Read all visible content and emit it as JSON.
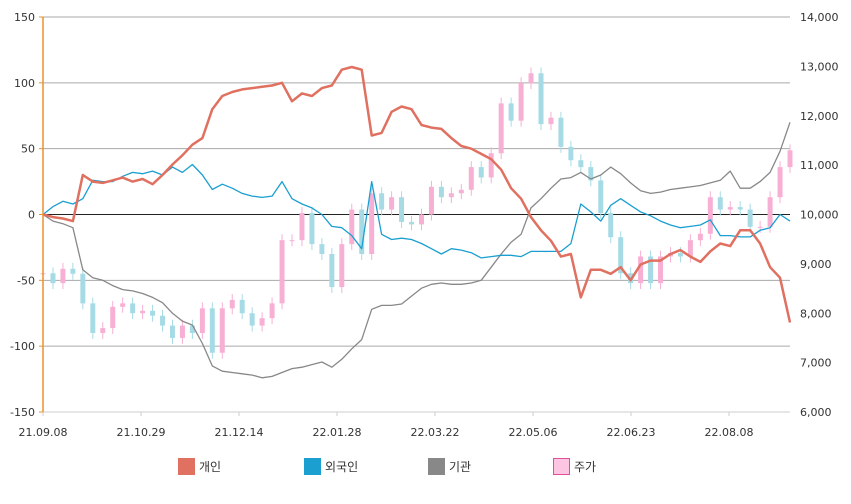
{
  "chart_data": {
    "type": "line",
    "x_tick_labels": [
      "21.09.08",
      "21.10.29",
      "21.12.14",
      "22.01.28",
      "22.03.22",
      "22.05.06",
      "22.06.23",
      "22.08.08"
    ],
    "left_axis": {
      "ylim": [
        -150,
        150
      ],
      "ticks": [
        -150,
        -100,
        -50,
        0,
        50,
        100,
        150
      ]
    },
    "right_axis": {
      "ylim": [
        6000,
        14000
      ],
      "ticks": [
        "6,000",
        "7,000",
        "8,000",
        "9,000",
        "10,000",
        "11,000",
        "12,000",
        "13,000",
        "14,000"
      ]
    },
    "grid": true,
    "legend_position": "bottom",
    "series": [
      {
        "name": "개인",
        "color": "#e07060",
        "axis": "left",
        "values": [
          0,
          -2,
          -3,
          -5,
          30,
          25,
          24,
          26,
          28,
          25,
          27,
          23,
          30,
          38,
          45,
          53,
          58,
          80,
          90,
          93,
          95,
          96,
          97,
          98,
          100,
          86,
          92,
          90,
          96,
          98,
          110,
          112,
          110,
          60,
          62,
          78,
          82,
          80,
          68,
          66,
          65,
          58,
          52,
          50,
          46,
          42,
          34,
          20,
          12,
          -2,
          -12,
          -20,
          -32,
          -30,
          -63,
          -42,
          -42,
          -45,
          -40,
          -50,
          -38,
          -35,
          -35,
          -30,
          -27,
          -32,
          -36,
          -28,
          -22,
          -24,
          -12,
          -12,
          -22,
          -40,
          -48,
          -82
        ]
      },
      {
        "name": "외국인",
        "color": "#1a9fd0",
        "axis": "left",
        "values": [
          0,
          6,
          10,
          8,
          12,
          26,
          25,
          25,
          29,
          32,
          31,
          33,
          30,
          36,
          32,
          38,
          30,
          19,
          23,
          20,
          16,
          14,
          13,
          14,
          25,
          12,
          8,
          5,
          0,
          -9,
          -10,
          -16,
          -26,
          25,
          -15,
          -19,
          -18,
          -19,
          -22,
          -26,
          -30,
          -26,
          -27,
          -29,
          -33,
          -32,
          -31,
          -31,
          -32,
          -28,
          -28,
          -28,
          -28,
          -22,
          8,
          2,
          -5,
          7,
          12,
          7,
          2,
          -1,
          -5,
          -8,
          -10,
          -9,
          -8,
          -4,
          -16,
          -16,
          -17,
          -17,
          -12,
          -10,
          0,
          -5
        ]
      },
      {
        "name": "기관",
        "color": "#888888",
        "axis": "left",
        "values": [
          0,
          -5,
          -7,
          -10,
          -42,
          -48,
          -50,
          -54,
          -57,
          -58,
          -60,
          -63,
          -67,
          -75,
          -81,
          -84,
          -98,
          -115,
          -119,
          -120,
          -121,
          -122,
          -124,
          -123,
          -120,
          -117,
          -116,
          -114,
          -112,
          -116,
          -110,
          -102,
          -95,
          -72,
          -69,
          -69,
          -68,
          -62,
          -56,
          -53,
          -52,
          -53,
          -53,
          -52,
          -50,
          -40,
          -30,
          -21,
          -15,
          5,
          12,
          20,
          27,
          28,
          32,
          27,
          30,
          36,
          31,
          24,
          18,
          16,
          17,
          19,
          20,
          21,
          22,
          24,
          26,
          33,
          20,
          20,
          25,
          32,
          48,
          70
        ]
      },
      {
        "name": "주가",
        "type": "candlestick",
        "up_color": "#f7b0d4",
        "down_color": "#a6dbe6",
        "axis": "right",
        "close": [
          8810,
          8610,
          8900,
          8800,
          8200,
          7600,
          7700,
          8130,
          8200,
          8000,
          8050,
          7950,
          7750,
          7500,
          7750,
          7600,
          8100,
          7200,
          8100,
          8270,
          8000,
          7750,
          7900,
          8200,
          9480,
          9480,
          10030,
          9400,
          9200,
          8530,
          9400,
          10100,
          9200,
          10430,
          10100,
          10350,
          9850,
          9800,
          10000,
          10560,
          10350,
          10430,
          10500,
          10960,
          10750,
          11240,
          12250,
          11900,
          12660,
          12860,
          11830,
          11960,
          11370,
          11100,
          10960,
          10690,
          10030,
          9540,
          8810,
          8610,
          9150,
          8610,
          9150,
          9220,
          9150,
          9480,
          9610,
          10350,
          10100,
          10150,
          10100,
          9750,
          9750,
          10350,
          10960,
          11300
        ]
      }
    ]
  }
}
